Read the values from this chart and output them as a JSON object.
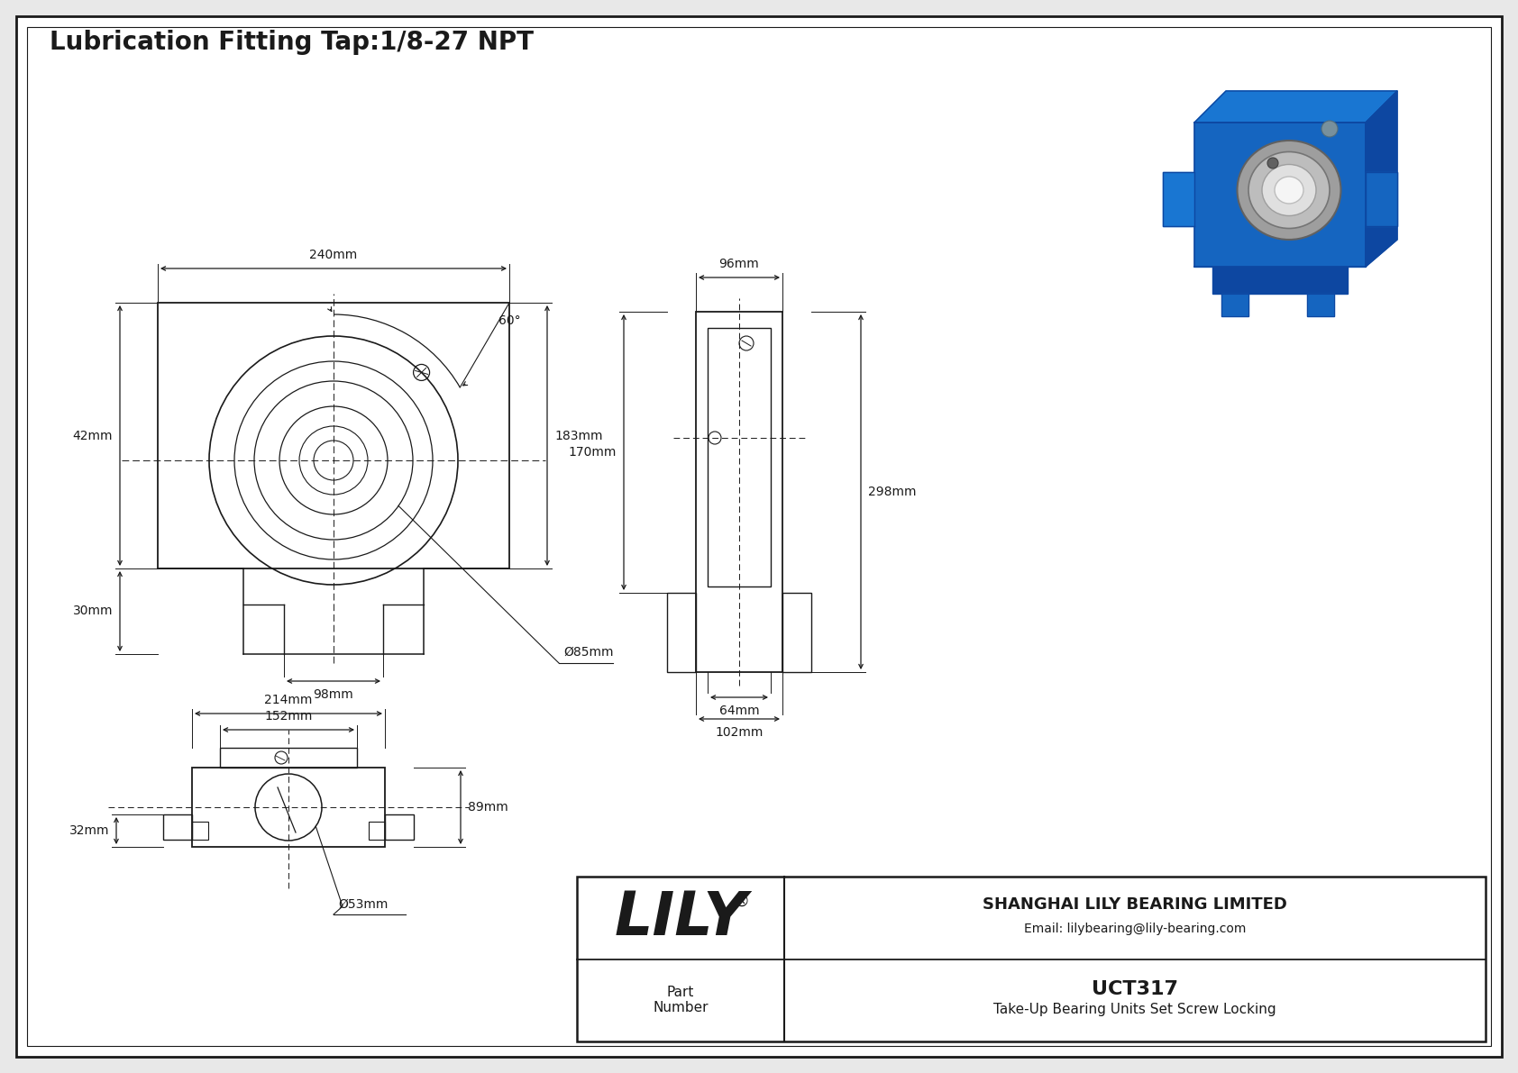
{
  "title": "Lubrication Fitting Tap:1/8-27 NPT",
  "bg_color": "#e8e8e8",
  "drawing_bg": "#ffffff",
  "line_color": "#1a1a1a",
  "dim_color": "#1a1a1a",
  "font_size_title": 20,
  "font_size_dim": 10,
  "part_number": "UCT317",
  "part_description": "Take-Up Bearing Units Set Screw Locking",
  "company": "SHANGHAI LILY BEARING LIMITED",
  "email": "Email: lilybearing@lily-bearing.com",
  "lily_text": "LILY",
  "dimensions": {
    "width_240": "240mm",
    "height_183": "183mm",
    "width_42": "42mm",
    "height_30": "30mm",
    "width_98": "98mm",
    "dia_85": "Ø85mm",
    "angle_60": "60°",
    "width_96": "96mm",
    "height_170": "170mm",
    "height_298": "298mm",
    "width_64": "64mm",
    "width_102": "102mm",
    "width_214": "214mm",
    "width_152": "152mm",
    "height_89": "89mm",
    "height_32": "32mm",
    "dia_53": "Ø53mm"
  }
}
